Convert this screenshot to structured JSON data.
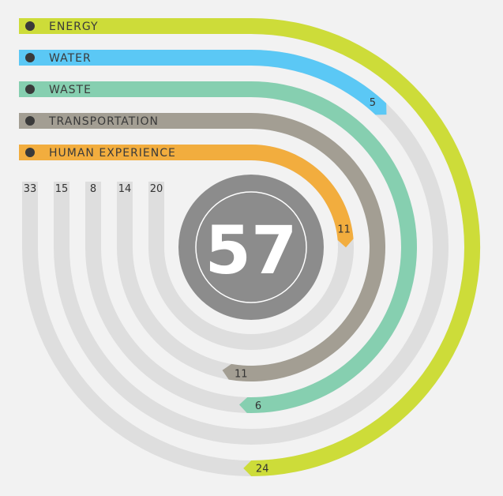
{
  "chart_data": {
    "type": "radial-bar",
    "total": "57",
    "series": [
      {
        "name": "ENERGY",
        "value": 24,
        "max": 33,
        "color": "#cddc39",
        "icon": "lightning-icon"
      },
      {
        "name": "WATER",
        "value": 5,
        "max": 15,
        "color": "#5bc8f5",
        "icon": "water-drop-icon"
      },
      {
        "name": "WASTE",
        "value": 6,
        "max": 8,
        "color": "#86cfb0",
        "icon": "recycle-icon"
      },
      {
        "name": "TRANSPORTATION",
        "value": 11,
        "max": 14,
        "color": "#a39e93",
        "icon": "car-icon"
      },
      {
        "name": "HUMAN EXPERIENCE",
        "value": 11,
        "max": 20,
        "color": "#f2ad3e",
        "icon": "person-icon"
      }
    ],
    "track_color": "#dedede",
    "center_color": "#8c8c8c"
  }
}
